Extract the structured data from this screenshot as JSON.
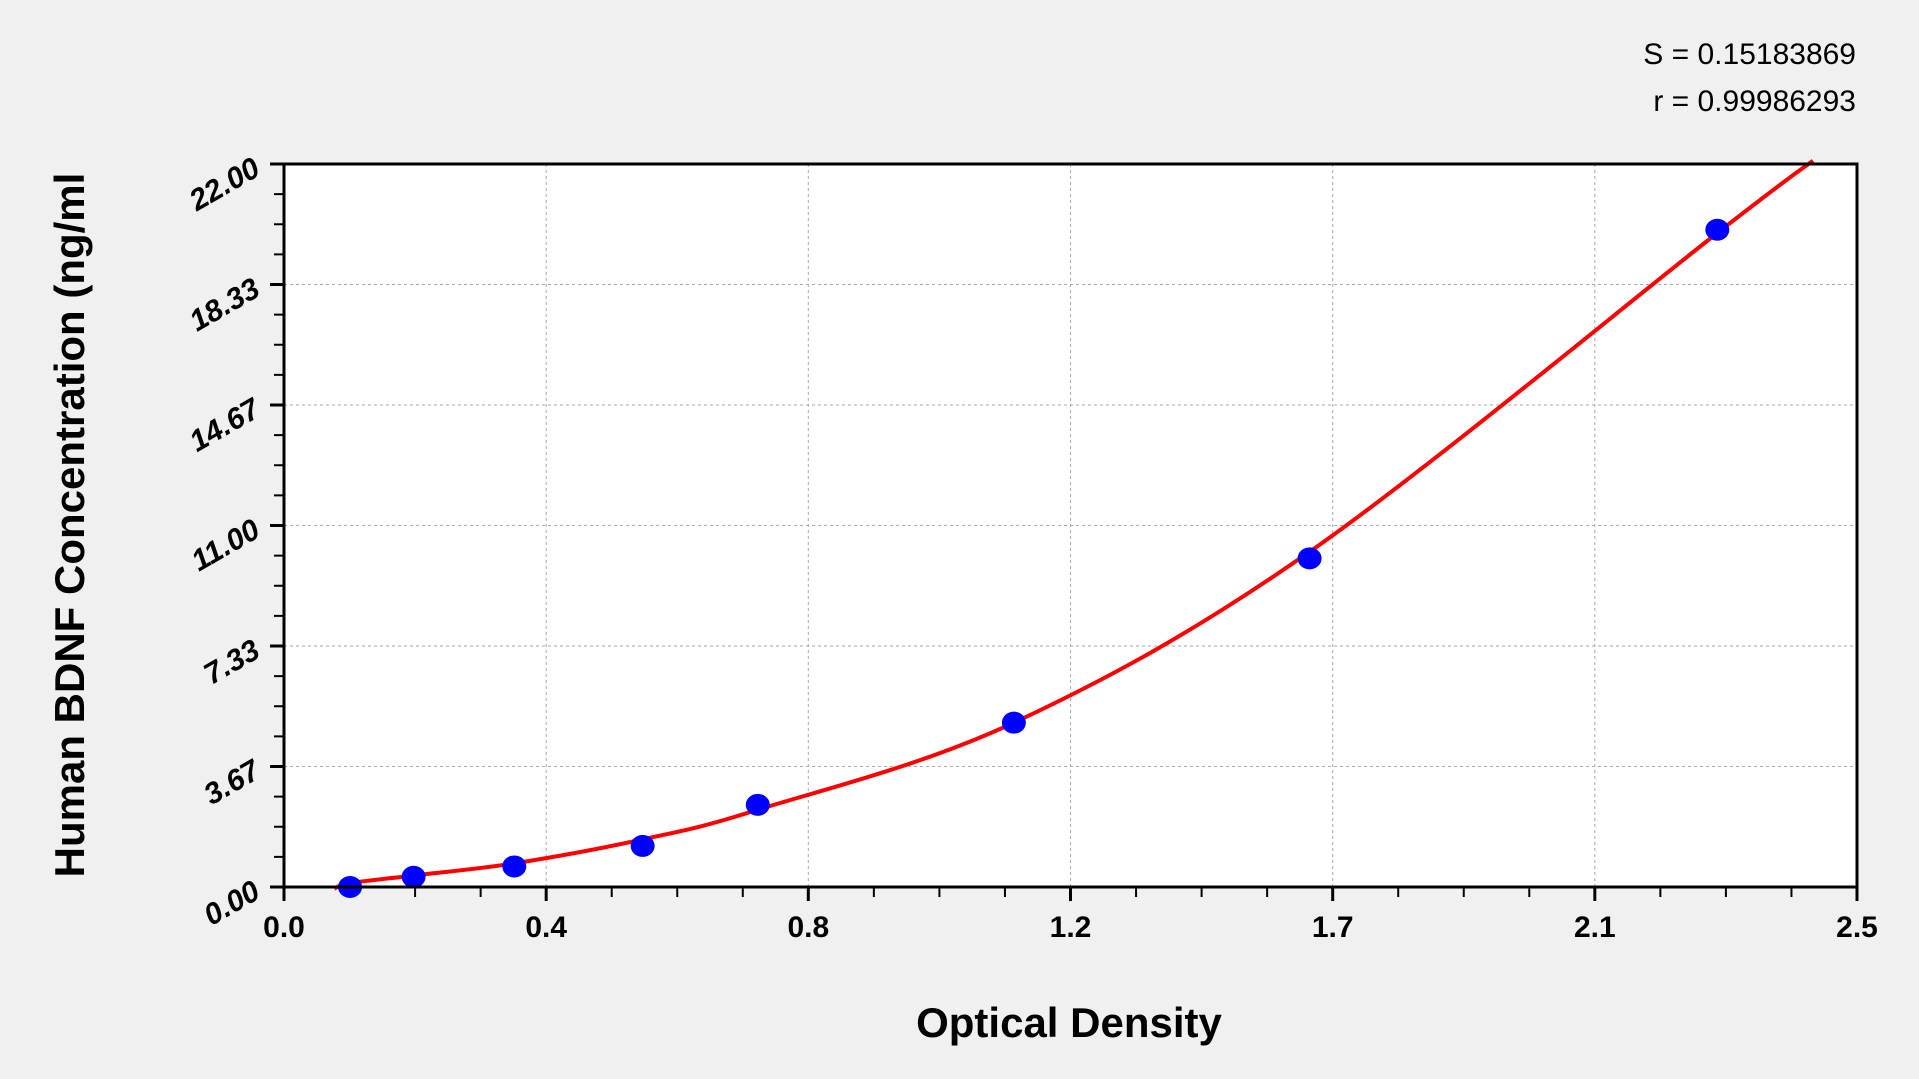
{
  "chart_data": {
    "type": "scatter",
    "xlabel": "Optical Density",
    "ylabel": "Human BDNF Concentration (ng/ml",
    "xlim": [
      0,
      2.5
    ],
    "ylim": [
      0,
      22
    ],
    "x_ticks": [
      0,
      0.4167,
      0.8333,
      1.25,
      1.6667,
      2.0833,
      2.5
    ],
    "x_tick_labels": [
      "0.0",
      "0.4",
      "0.8",
      "1.2",
      "1.7",
      "2.1",
      "2.5"
    ],
    "y_ticks": [
      0,
      3.667,
      7.333,
      11,
      14.667,
      18.333,
      22
    ],
    "y_tick_labels": [
      "0.00",
      "3.67",
      "7.33",
      "11.00",
      "14.67",
      "18.33",
      "22.00"
    ],
    "grid": true,
    "points": {
      "x": [
        0.105,
        0.206,
        0.366,
        0.57,
        0.753,
        1.16,
        1.63,
        2.278
      ],
      "y": [
        0,
        0.31,
        0.625,
        1.25,
        2.5,
        5,
        10,
        20
      ],
      "color": "#0000ff"
    },
    "fit_curve": {
      "color": "#ff0000",
      "x_range": [
        0.08,
        2.43
      ]
    },
    "annotations": {
      "s": "S = 0.15183869",
      "r": "r = 0.99986293"
    }
  }
}
